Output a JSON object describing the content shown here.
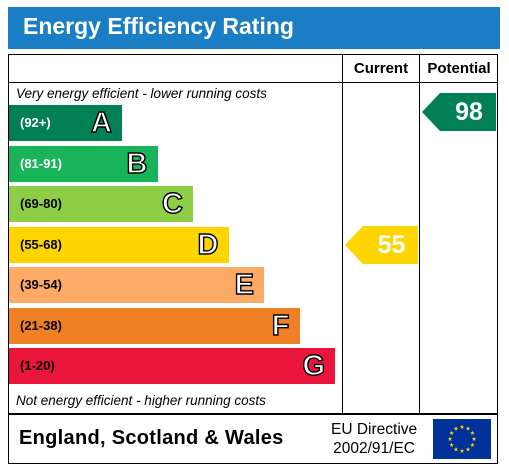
{
  "title": "Energy Efficiency Rating",
  "columns": {
    "current": "Current",
    "potential": "Potential"
  },
  "captions": {
    "top": "Very energy efficient - lower running costs",
    "bottom": "Not energy efficient - higher running costs"
  },
  "footer": {
    "country": "England, Scotland & Wales",
    "directive_line1": "EU Directive",
    "directive_line2": "2002/91/EC",
    "flag_icon": "eu-flag-icon"
  },
  "chart_data": {
    "type": "bar",
    "bands": [
      {
        "letter": "A",
        "range": "(92+)",
        "min": 92,
        "max": 100,
        "color": "#008054",
        "range_light": true
      },
      {
        "letter": "B",
        "range": "(81-91)",
        "min": 81,
        "max": 91,
        "color": "#19b459",
        "range_light": true
      },
      {
        "letter": "C",
        "range": "(69-80)",
        "min": 69,
        "max": 80,
        "color": "#8dce46",
        "range_light": false
      },
      {
        "letter": "D",
        "range": "(55-68)",
        "min": 55,
        "max": 68,
        "color": "#ffd500",
        "range_light": false
      },
      {
        "letter": "E",
        "range": "(39-54)",
        "min": 39,
        "max": 54,
        "color": "#fcaa65",
        "range_light": false
      },
      {
        "letter": "F",
        "range": "(21-38)",
        "min": 21,
        "max": 38,
        "color": "#ef8023",
        "range_light": false
      },
      {
        "letter": "G",
        "range": "(1-20)",
        "min": 1,
        "max": 20,
        "color": "#e9153b",
        "range_light": false
      }
    ],
    "current": {
      "value": 55,
      "band": "D",
      "color": "#ffd500"
    },
    "potential": {
      "value": 98,
      "band": "A",
      "color": "#008054"
    }
  }
}
